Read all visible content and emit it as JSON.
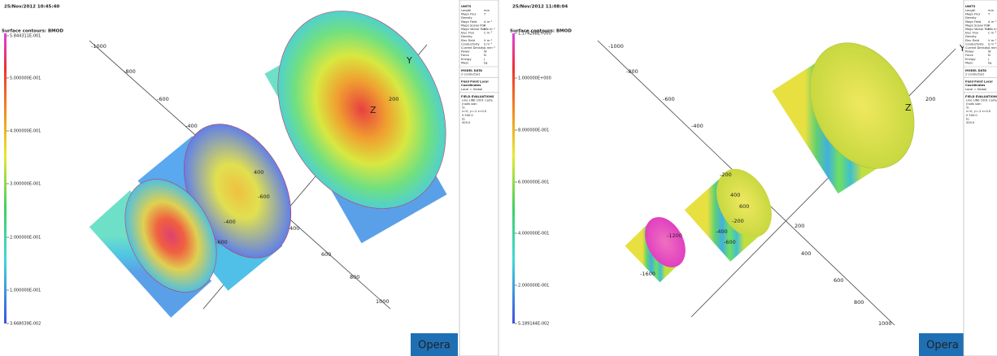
{
  "panels": [
    {
      "timestamp": "25/Nov/2012 10:45:40",
      "contour_title": "Surface contours: BMOD",
      "colorbar_labels": [
        "5.844311E-001",
        "5.000000E-001",
        "4.000000E-001",
        "3.000000E-001",
        "2.000000E-001",
        "1.000000E-001",
        "3.668039E-002"
      ],
      "axis_labels": [
        "-1000",
        "-800",
        "-600",
        "-400",
        "400",
        "600",
        "800",
        "1000",
        "Y",
        "200",
        "Z",
        "400",
        "-600",
        "-400",
        "-600"
      ],
      "logo": "Opera",
      "units_title": "UNITS",
      "units": [
        [
          "Length",
          "mm"
        ],
        [
          "Magn Flux",
          "T"
        ],
        [
          "Density",
          ""
        ],
        [
          "Magn Field",
          "A m⁻¹"
        ],
        [
          "Magn Scalar Pot",
          "A"
        ],
        [
          "Magn Vector Pot",
          "Wb m⁻¹"
        ],
        [
          "Elec Flux",
          "C m⁻²"
        ],
        [
          "Density",
          ""
        ],
        [
          "Elec Field",
          "V m⁻¹"
        ],
        [
          "Conductivity",
          "S m⁻¹"
        ],
        [
          "Current Density",
          "A mm⁻²"
        ],
        [
          "Power",
          "W"
        ],
        [
          "Force",
          "N"
        ],
        [
          "Energy",
          "J"
        ],
        [
          "Mass",
          "kg"
        ]
      ],
      "model_data_title": "MODEL DATA",
      "model_data": "2 conductors",
      "field_point_title": [
        "Field Point Local",
        "Coordinates"
      ],
      "field_point": "Local = Global",
      "field_eval_title": "FIELD EVALUATIONS",
      "field_eval": [
        "Line LINE  1001 Carte",
        "(nods        sian",
        "5)",
        "x=0,   y=-2  z=0.0",
        "0      500.0",
        "to",
        "500.0"
      ]
    },
    {
      "timestamp": "25/Nov/2012 11:08:04",
      "contour_title": "Surface contours: BMOD",
      "colorbar_labels": [
        "1.174268E+000",
        "1.000000E+000",
        "8.000000E-001",
        "6.000000E-001",
        "4.000000E-001",
        "2.000000E-001",
        "5.189144E-002"
      ],
      "axis_labels": [
        "-1000",
        "-800",
        "-600",
        "-400",
        "-200",
        "200",
        "400",
        "600",
        "800",
        "1000",
        "Y",
        "200",
        "Z",
        "400",
        "600",
        "-200",
        "-400",
        "-600",
        "-1200",
        "-1600"
      ],
      "logo": "Opera",
      "units_title": "UNITS",
      "units": [
        [
          "Length",
          "mm"
        ],
        [
          "Magn Flux",
          "T"
        ],
        [
          "Density",
          ""
        ],
        [
          "Magn Field",
          "A m⁻¹"
        ],
        [
          "Magn Scalar Pot",
          "A"
        ],
        [
          "Magn Vector Pot",
          "Wb m⁻¹"
        ],
        [
          "Elec Flux",
          "C m⁻²"
        ],
        [
          "Density",
          ""
        ],
        [
          "Elec Field",
          "V m⁻¹"
        ],
        [
          "Conductivity",
          "S m⁻¹"
        ],
        [
          "Current Density",
          "A mm⁻²"
        ],
        [
          "Power",
          "W"
        ],
        [
          "Force",
          "N"
        ],
        [
          "Energy",
          "J"
        ],
        [
          "Mass",
          "kg"
        ]
      ],
      "model_data_title": "MODEL DATA",
      "model_data": "2 conductors",
      "field_point_title": [
        "Field Point Local",
        "Coordinates"
      ],
      "field_point": "Local = Global",
      "field_eval_title": "FIELD EVALUATIONS",
      "field_eval": [
        "Line LINE  1001 Carte",
        "(nods        sian",
        "5)",
        "x=0,   y=-2  z=0.0",
        "0      500.0",
        "to",
        "500.0"
      ]
    }
  ]
}
